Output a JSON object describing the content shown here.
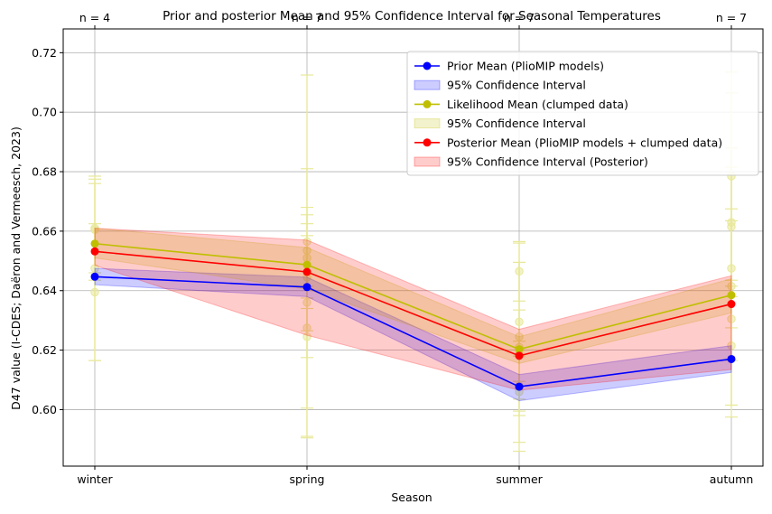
{
  "chart_data": {
    "type": "line",
    "title": "Prior and posterior Mean and 95% Confidence Interval for Seasonal Temperatures",
    "xlabel": "Season",
    "ylabel": "D47 value (I-CDES; Daëron and Vermeesch, 2023)",
    "categories": [
      "winter",
      "spring",
      "summer",
      "autumn"
    ],
    "top_labels": [
      "n = 4",
      "n = 7",
      "n = 7",
      "n = 7"
    ],
    "ylim": [
      0.581,
      0.728
    ],
    "yticks": [
      0.6,
      0.62,
      0.64,
      0.66,
      0.68,
      0.7,
      0.72
    ],
    "ytick_labels": [
      "0.60",
      "0.62",
      "0.64",
      "0.66",
      "0.68",
      "0.70",
      "0.72"
    ],
    "grid": true,
    "legend_position": "top-right",
    "series": [
      {
        "key": "prior",
        "name": "Prior Mean (PlioMIP models)",
        "ci_name": "95% Confidence Interval",
        "color": "#0000ff",
        "values": [
          0.6447,
          0.6412,
          0.6077,
          0.617
        ],
        "lower": [
          0.642,
          0.638,
          0.603,
          0.6125
        ],
        "upper": [
          0.6475,
          0.6445,
          0.6118,
          0.6215
        ]
      },
      {
        "key": "likelihood",
        "name": "Likelihood Mean (clumped data)",
        "ci_name": "95% Confidence Interval",
        "color": "#bfbf00",
        "values": [
          0.6558,
          0.6487,
          0.6203,
          0.6385
        ],
        "lower": [
          0.651,
          0.6405,
          0.6155,
          0.6325
        ],
        "upper": [
          0.661,
          0.6545,
          0.6245,
          0.644
        ]
      },
      {
        "key": "posterior",
        "name": "Posterior Mean (PlioMIP models + clumped data)",
        "ci_name": "95% Confidence Interval (Posterior)",
        "color": "#ff0000",
        "values": [
          0.6532,
          0.6463,
          0.6181,
          0.6355
        ],
        "lower": [
          0.6485,
          0.625,
          0.6065,
          0.6135
        ],
        "upper": [
          0.661,
          0.657,
          0.627,
          0.645
        ]
      }
    ],
    "observations": [
      {
        "season": "winter",
        "points": [
          {
            "y": 0.661,
            "err": 0.015
          },
          {
            "y": 0.6605,
            "err": 0.017
          },
          {
            "y": 0.6395,
            "err": 0.023
          },
          {
            "y": 0.6475,
            "err": 0.031
          }
        ]
      },
      {
        "season": "spring",
        "points": [
          {
            "y": 0.6565,
            "err": 0.056
          },
          {
            "y": 0.6535,
            "err": 0.012
          },
          {
            "y": 0.651,
            "err": 0.017
          },
          {
            "y": 0.6445,
            "err": 0.018
          },
          {
            "y": 0.636,
            "err": 0.045
          },
          {
            "y": 0.6275,
            "err": 0.01
          },
          {
            "y": 0.6245,
            "err": 0.034
          }
        ]
      },
      {
        "season": "summer",
        "points": [
          {
            "y": 0.6465,
            "err": 0.01
          },
          {
            "y": 0.6295,
            "err": 0.02
          },
          {
            "y": 0.6245,
            "err": 0.025
          },
          {
            "y": 0.621,
            "err": 0.035
          },
          {
            "y": 0.6185,
            "err": 0.015
          },
          {
            "y": 0.608,
            "err": 0.01
          },
          {
            "y": 0.606,
            "err": 0.017
          }
        ]
      },
      {
        "season": "autumn",
        "points": [
          {
            "y": 0.6785,
            "err": 0.035
          },
          {
            "y": 0.663,
            "err": 0.025
          },
          {
            "y": 0.6615,
            "err": 0.045
          },
          {
            "y": 0.6475,
            "err": 0.02
          },
          {
            "y": 0.6415,
            "err": 0.04
          },
          {
            "y": 0.6305,
            "err": 0.033
          },
          {
            "y": 0.6215,
            "err": 0.02
          }
        ]
      }
    ],
    "observation_color": "#e8e89a"
  }
}
